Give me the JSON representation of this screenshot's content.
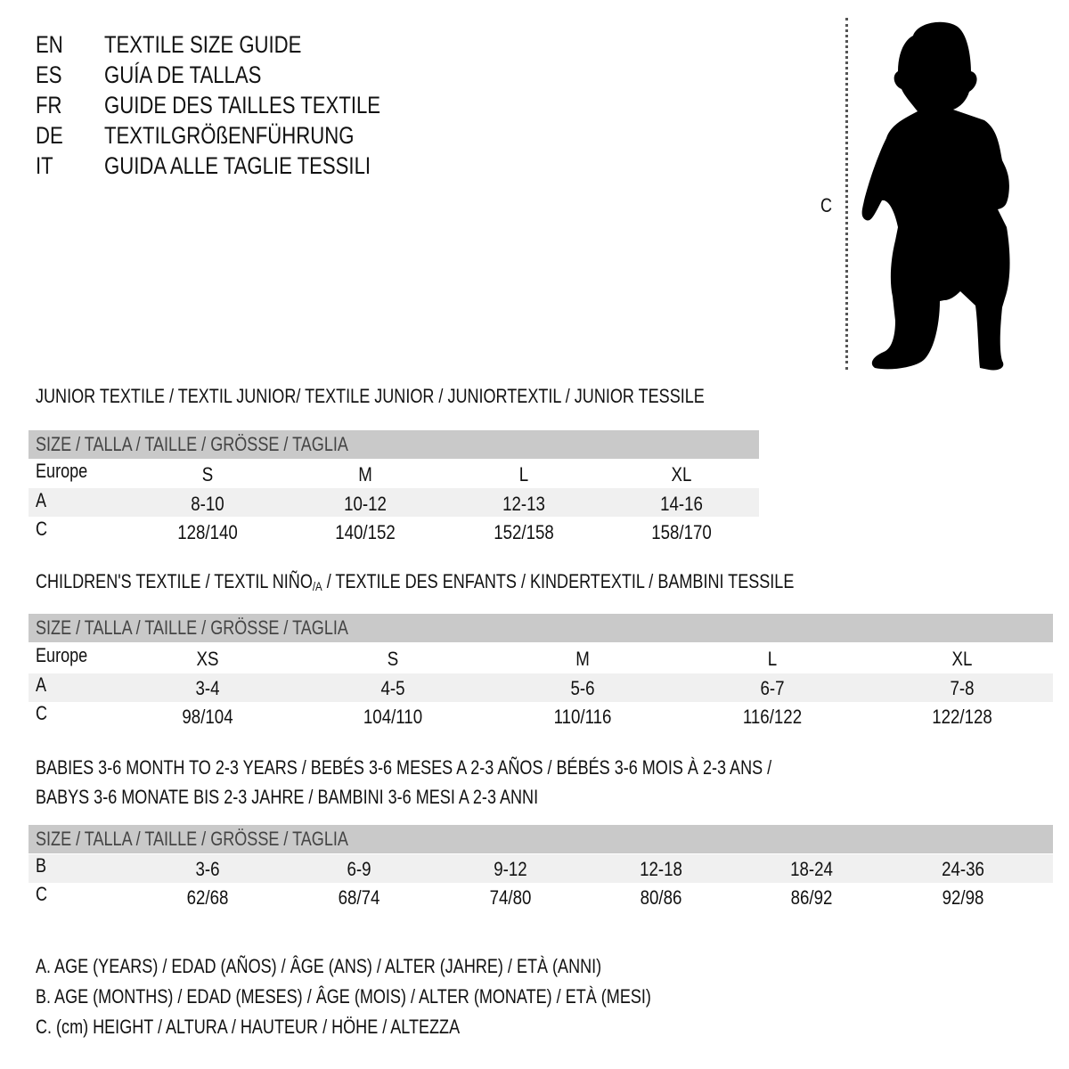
{
  "titles": [
    {
      "code": "EN",
      "text": "TEXTILE SIZE GUIDE"
    },
    {
      "code": "ES",
      "text": "GUÍA DE TALLAS"
    },
    {
      "code": "FR",
      "text": "GUIDE DES TAILLES TEXTILE"
    },
    {
      "code": "DE",
      "text": "TEXTILGRÖßENFÜHRUNG"
    },
    {
      "code": "IT",
      "text": "GUIDA ALLE TAGLIE TESSILI"
    }
  ],
  "figure": {
    "measure_label": "C",
    "icon": "child-silhouette"
  },
  "size_header": "SIZE / TALLA / TAILLE / GRÖSSE / TAGLIA",
  "junior": {
    "title": "JUNIOR TEXTILE / TEXTIL JUNIOR/ TEXTILE JUNIOR / JUNIORTEXTIL / JUNIOR TESSILE",
    "rows": [
      {
        "label": "Europe",
        "values": [
          "S",
          "M",
          "L",
          "XL"
        ]
      },
      {
        "label": "A",
        "values": [
          "8-10",
          "10-12",
          "12-13",
          "14-16"
        ]
      },
      {
        "label": "C",
        "values": [
          "128/140",
          "140/152",
          "152/158",
          "158/170"
        ]
      }
    ]
  },
  "children": {
    "title_pre": "CHILDREN'S TEXTILE / TEXTIL NIÑO",
    "title_sub": "/A",
    "title_post": " / TEXTILE DES ENFANTS / KINDERTEXTIL / BAMBINI TESSILE",
    "rows": [
      {
        "label": "Europe",
        "values": [
          "XS",
          "S",
          "M",
          "L",
          "XL"
        ]
      },
      {
        "label": "A",
        "values": [
          "3-4",
          "4-5",
          "5-6",
          "6-7",
          "7-8"
        ]
      },
      {
        "label": "C",
        "values": [
          "98/104",
          "104/110",
          "110/116",
          "116/122",
          "122/128"
        ]
      }
    ]
  },
  "babies": {
    "title_line1": "BABIES 3-6 MONTH TO 2-3 YEARS / BEBÉS 3-6 MESES A 2-3 AÑOS / BÉBÉS 3-6 MOIS À 2-3 ANS /",
    "title_line2": "BABYS 3-6 MONATE BIS 2-3 JAHRE / BAMBINI 3-6 MESI A 2-3 ANNI",
    "rows": [
      {
        "label": "B",
        "values": [
          "3-6",
          "6-9",
          "9-12",
          "12-18",
          "18-24",
          "24-36"
        ]
      },
      {
        "label": "C",
        "values": [
          "62/68",
          "68/74",
          "74/80",
          "80/86",
          "86/92",
          "92/98"
        ]
      }
    ]
  },
  "legend": [
    "A. AGE (YEARS) / EDAD (AÑOS) / ÂGE (ANS) / ALTER (JAHRE) / ETÀ (ANNI)",
    "B. AGE (MONTHS) / EDAD (MESES) / ÂGE (MOIS) / ALTER (MONATE) / ETÀ (MESI)",
    "C. (cm) HEIGHT / ALTURA / HAUTEUR / HÖHE / ALTEZZA"
  ],
  "colors": {
    "header_band": "#c9c9c9",
    "alt_row": "#f0f0f0",
    "text": "#111111"
  }
}
